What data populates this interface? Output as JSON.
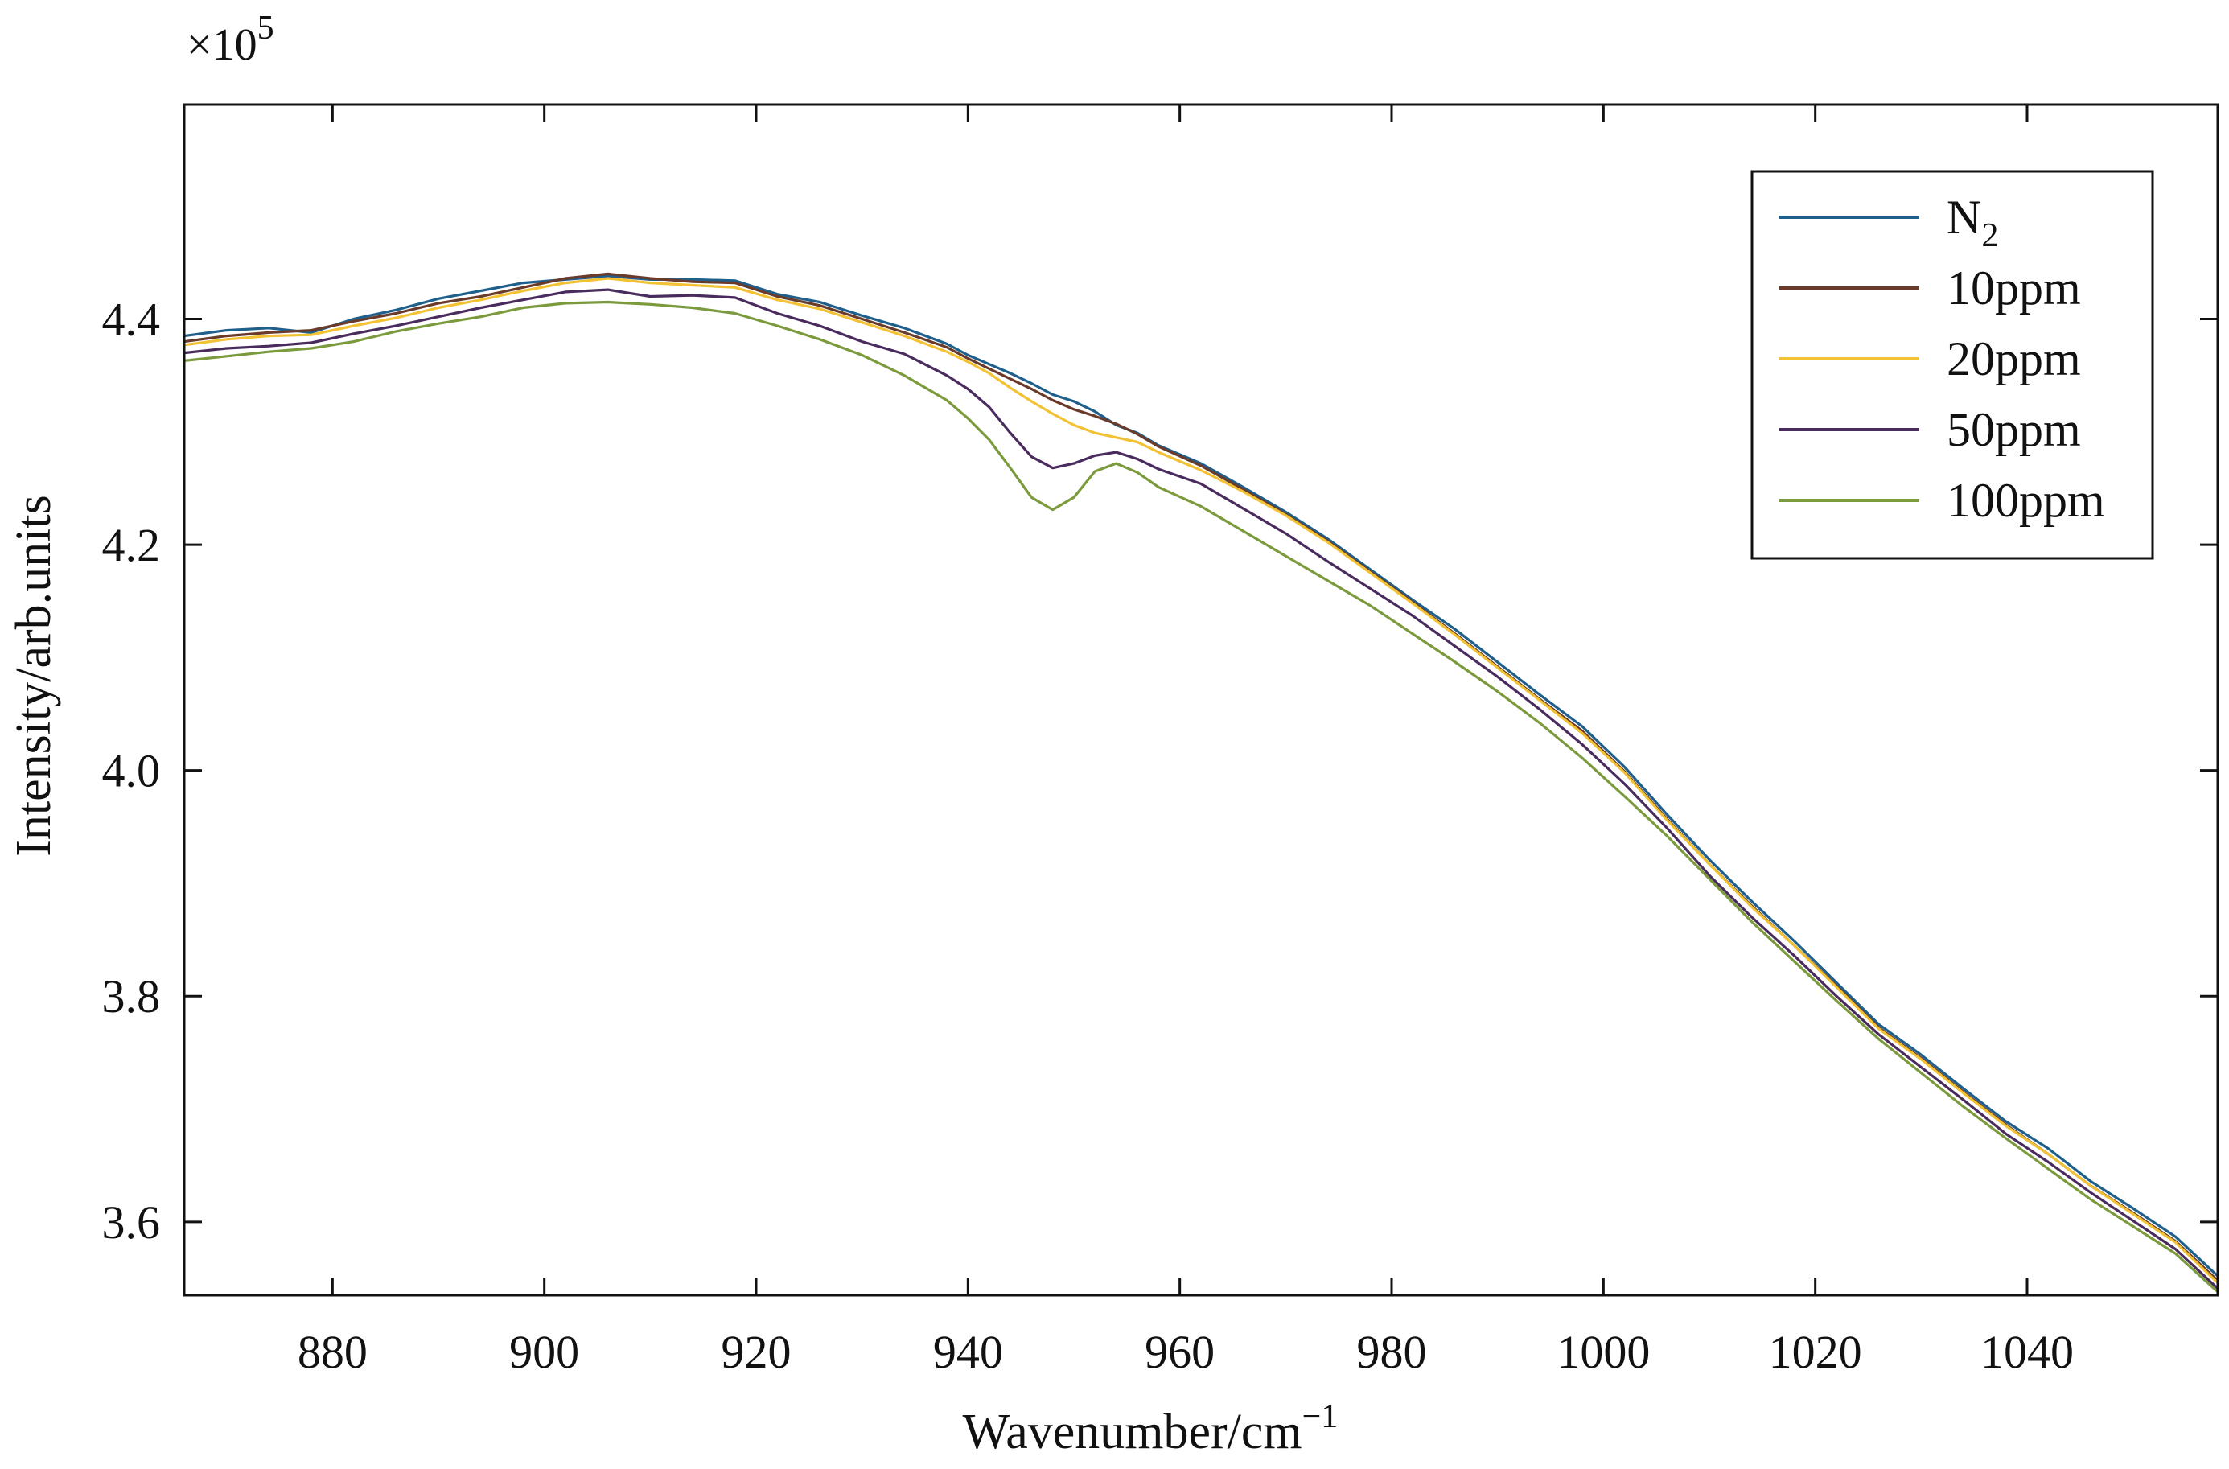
{
  "chart_data": {
    "type": "line",
    "title": "",
    "xlabel": "Wavenumber/cm",
    "xlabel_superscript": "−1",
    "ylabel": "Intensity/arb.units",
    "y_multiplier": "×10",
    "y_multiplier_exponent": "5",
    "xlim": [
      866,
      1058
    ],
    "ylim": [
      3.535,
      4.59
    ],
    "x_ticks": [
      880,
      900,
      920,
      940,
      960,
      980,
      1000,
      1020,
      1040
    ],
    "x_tick_labels": [
      "880",
      "900",
      "920",
      "940",
      "960",
      "980",
      "1000",
      "1020",
      "1040"
    ],
    "y_ticks": [
      3.6,
      3.8,
      4.0,
      4.2,
      4.4
    ],
    "y_tick_labels": [
      "3.6",
      "3.8",
      "4.0",
      "4.2",
      "4.4"
    ],
    "legend_position": "top-right",
    "x": [
      866,
      870,
      874,
      878,
      882,
      886,
      890,
      894,
      898,
      902,
      906,
      910,
      914,
      918,
      922,
      926,
      930,
      934,
      938,
      940,
      942,
      944,
      946,
      948,
      950,
      952,
      954,
      956,
      958,
      962,
      966,
      970,
      974,
      978,
      982,
      986,
      990,
      994,
      998,
      1002,
      1006,
      1010,
      1014,
      1018,
      1022,
      1026,
      1030,
      1034,
      1038,
      1042,
      1046,
      1050,
      1054,
      1058
    ],
    "series": [
      {
        "name": "N",
        "name_subscript": "2",
        "color": "#1f5f8b",
        "values": [
          4.385,
          4.39,
          4.392,
          4.388,
          4.4,
          4.408,
          4.418,
          4.425,
          4.432,
          4.435,
          4.438,
          4.435,
          4.435,
          4.434,
          4.422,
          4.415,
          4.403,
          4.392,
          4.378,
          4.368,
          4.36,
          4.352,
          4.343,
          4.333,
          4.327,
          4.318,
          4.306,
          4.299,
          4.288,
          4.272,
          4.251,
          4.229,
          4.205,
          4.178,
          4.151,
          4.125,
          4.096,
          4.067,
          4.039,
          4.003,
          3.961,
          3.921,
          3.884,
          3.849,
          3.812,
          3.775,
          3.748,
          3.718,
          3.689,
          3.665,
          3.636,
          3.612,
          3.587,
          3.552
        ]
      },
      {
        "name": "10ppm",
        "color": "#6a3b2a",
        "values": [
          4.38,
          4.385,
          4.388,
          4.39,
          4.398,
          4.405,
          4.414,
          4.42,
          4.428,
          4.436,
          4.44,
          4.436,
          4.433,
          4.432,
          4.42,
          4.412,
          4.4,
          4.388,
          4.375,
          4.365,
          4.356,
          4.347,
          4.338,
          4.328,
          4.32,
          4.314,
          4.307,
          4.298,
          4.287,
          4.27,
          4.249,
          4.227,
          4.203,
          4.176,
          4.149,
          4.121,
          4.092,
          4.063,
          4.035,
          3.999,
          3.957,
          3.917,
          3.88,
          3.845,
          3.809,
          3.772,
          3.745,
          3.715,
          3.686,
          3.66,
          3.632,
          3.608,
          3.583,
          3.548
        ]
      },
      {
        "name": "20ppm",
        "color": "#f2c234",
        "values": [
          4.377,
          4.382,
          4.385,
          4.386,
          4.394,
          4.401,
          4.41,
          4.417,
          4.425,
          4.432,
          4.436,
          4.432,
          4.43,
          4.428,
          4.417,
          4.409,
          4.397,
          4.385,
          4.371,
          4.362,
          4.352,
          4.339,
          4.327,
          4.316,
          4.306,
          4.299,
          4.295,
          4.291,
          4.282,
          4.266,
          4.247,
          4.226,
          4.202,
          4.175,
          4.148,
          4.12,
          4.091,
          4.062,
          4.033,
          3.998,
          3.956,
          3.917,
          3.879,
          3.845,
          3.808,
          3.771,
          3.744,
          3.714,
          3.685,
          3.66,
          3.632,
          3.607,
          3.582,
          3.546
        ]
      },
      {
        "name": "50ppm",
        "color": "#4a2b5e",
        "values": [
          4.37,
          4.374,
          4.376,
          4.379,
          4.387,
          4.394,
          4.402,
          4.41,
          4.417,
          4.424,
          4.426,
          4.42,
          4.421,
          4.419,
          4.405,
          4.394,
          4.38,
          4.369,
          4.35,
          4.338,
          4.322,
          4.299,
          4.278,
          4.268,
          4.272,
          4.279,
          4.282,
          4.276,
          4.267,
          4.254,
          4.232,
          4.21,
          4.185,
          4.161,
          4.137,
          4.11,
          4.083,
          4.054,
          4.023,
          3.988,
          3.949,
          3.907,
          3.87,
          3.836,
          3.8,
          3.766,
          3.737,
          3.708,
          3.678,
          3.653,
          3.626,
          3.601,
          3.576,
          3.541
        ]
      },
      {
        "name": "100ppm",
        "color": "#7b9a3c",
        "values": [
          4.363,
          4.367,
          4.371,
          4.374,
          4.38,
          4.389,
          4.396,
          4.402,
          4.41,
          4.414,
          4.415,
          4.413,
          4.41,
          4.405,
          4.394,
          4.382,
          4.368,
          4.35,
          4.328,
          4.312,
          4.293,
          4.268,
          4.242,
          4.231,
          4.242,
          4.265,
          4.272,
          4.264,
          4.251,
          4.234,
          4.212,
          4.19,
          4.168,
          4.146,
          4.121,
          4.096,
          4.07,
          4.042,
          4.011,
          3.977,
          3.942,
          3.904,
          3.866,
          3.831,
          3.796,
          3.762,
          3.732,
          3.702,
          3.674,
          3.647,
          3.62,
          3.596,
          3.572,
          3.538
        ]
      }
    ]
  }
}
